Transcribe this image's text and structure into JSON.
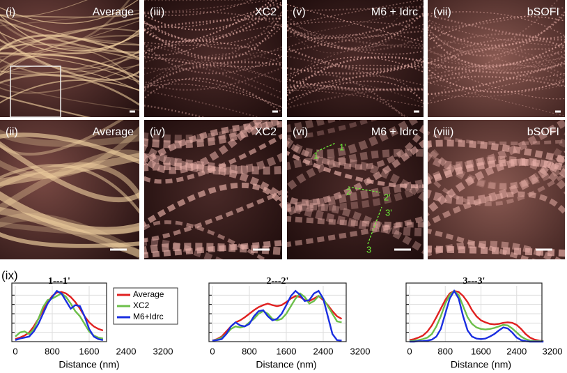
{
  "panels": [
    {
      "label": "(i)",
      "name": "Average"
    },
    {
      "label": "(iii)",
      "name": "XC2"
    },
    {
      "label": "(v)",
      "name": "M6 + Idrc"
    },
    {
      "label": "(vii)",
      "name": "bSOFI"
    },
    {
      "label": "(ii)",
      "name": "Average"
    },
    {
      "label": "(iv)",
      "name": "XC2"
    },
    {
      "label": "(vi)",
      "name": "M6 + Idrc",
      "markers": [
        "1",
        "1'",
        "2",
        "2'",
        "3",
        "3'"
      ]
    },
    {
      "label": "(viii)",
      "name": "bSOFI"
    }
  ],
  "figure_label": "(ix)",
  "chart_data": [
    {
      "type": "line",
      "title": "1---1'",
      "x_label": "Distance (nm)",
      "xlim": [
        0,
        3200
      ],
      "xticks": [
        0,
        800,
        1600,
        2400,
        3200
      ],
      "ylim": [
        0,
        1.1
      ],
      "grid": true,
      "legend": "top-right",
      "x": [
        0,
        100,
        200,
        300,
        400,
        500,
        600,
        700,
        800,
        900,
        1000,
        1100,
        1200,
        1300,
        1400,
        1500,
        1600,
        1700,
        1800,
        1900
      ],
      "series": [
        {
          "name": "Average",
          "color": "#e02020",
          "values": [
            0.05,
            0.08,
            0.12,
            0.18,
            0.3,
            0.45,
            0.62,
            0.78,
            0.9,
            0.97,
            0.98,
            0.95,
            0.88,
            0.78,
            0.65,
            0.5,
            0.38,
            0.3,
            0.25,
            0.22
          ]
        },
        {
          "name": "XC2",
          "color": "#6cbf4a",
          "values": [
            0.1,
            0.18,
            0.2,
            0.15,
            0.25,
            0.45,
            0.68,
            0.82,
            0.85,
            0.9,
            0.95,
            0.88,
            0.75,
            0.6,
            0.5,
            0.35,
            0.2,
            0.12,
            0.08,
            0.06
          ]
        },
        {
          "name": "M6+Idrc",
          "color": "#1a2ee0",
          "values": [
            0.03,
            0.06,
            0.08,
            0.1,
            0.2,
            0.35,
            0.55,
            0.75,
            0.88,
            1.0,
            0.95,
            0.8,
            0.65,
            0.72,
            0.7,
            0.5,
            0.25,
            0.1,
            0.05,
            0.03
          ]
        }
      ]
    },
    {
      "type": "line",
      "title": "2---2'",
      "x_label": "Distance (nm)",
      "xlim": [
        0,
        3200
      ],
      "xticks": [
        0,
        800,
        1600,
        2400,
        3200
      ],
      "ylim": [
        0,
        1.1
      ],
      "grid": true,
      "x": [
        0,
        100,
        200,
        300,
        400,
        500,
        600,
        700,
        800,
        900,
        1000,
        1100,
        1200,
        1300,
        1400,
        1500,
        1600,
        1700,
        1800,
        1900,
        2000,
        2100,
        2200,
        2300,
        2400,
        2500,
        2600,
        2700,
        2800
      ],
      "series": [
        {
          "color": "#e02020",
          "values": [
            0.02,
            0.05,
            0.1,
            0.2,
            0.3,
            0.38,
            0.42,
            0.48,
            0.55,
            0.62,
            0.68,
            0.72,
            0.75,
            0.72,
            0.7,
            0.72,
            0.78,
            0.85,
            0.9,
            0.88,
            0.82,
            0.8,
            0.85,
            0.9,
            0.82,
            0.72,
            0.6,
            0.5,
            0.45
          ]
        },
        {
          "color": "#6cbf4a",
          "values": [
            0.02,
            0.04,
            0.08,
            0.15,
            0.25,
            0.3,
            0.28,
            0.3,
            0.38,
            0.45,
            0.55,
            0.6,
            0.55,
            0.45,
            0.42,
            0.45,
            0.55,
            0.7,
            0.85,
            0.95,
            0.88,
            0.75,
            0.8,
            0.9,
            0.85,
            0.7,
            0.55,
            0.4,
            0.38
          ]
        },
        {
          "color": "#1a2ee0",
          "values": [
            0.02,
            0.03,
            0.05,
            0.15,
            0.3,
            0.38,
            0.32,
            0.3,
            0.35,
            0.5,
            0.6,
            0.62,
            0.5,
            0.42,
            0.45,
            0.55,
            0.72,
            0.9,
            1.0,
            0.92,
            0.8,
            0.82,
            0.95,
            1.0,
            0.85,
            0.5,
            0.15,
            0.03,
            0.02
          ]
        }
      ]
    },
    {
      "type": "line",
      "title": "3---3'",
      "x_label": "Distance (nm)",
      "xlim": [
        0,
        3200
      ],
      "xticks": [
        0,
        800,
        1600,
        2400,
        3200
      ],
      "ylim": [
        0,
        1.1
      ],
      "grid": true,
      "x": [
        0,
        100,
        200,
        300,
        400,
        500,
        600,
        700,
        800,
        900,
        1000,
        1100,
        1200,
        1300,
        1400,
        1500,
        1600,
        1700,
        1800,
        1900,
        2000,
        2100,
        2200,
        2300,
        2400,
        2500,
        2600,
        2700,
        2800,
        2900,
        3000
      ],
      "series": [
        {
          "color": "#e02020",
          "values": [
            0.03,
            0.05,
            0.08,
            0.12,
            0.2,
            0.32,
            0.48,
            0.65,
            0.82,
            0.95,
            1.0,
            0.98,
            0.9,
            0.78,
            0.62,
            0.5,
            0.42,
            0.38,
            0.35,
            0.34,
            0.35,
            0.37,
            0.38,
            0.37,
            0.33,
            0.25,
            0.15,
            0.08,
            0.04,
            0.02,
            0.01
          ]
        },
        {
          "color": "#6cbf4a",
          "values": [
            0.01,
            0.02,
            0.03,
            0.05,
            0.08,
            0.15,
            0.3,
            0.5,
            0.75,
            0.92,
            1.0,
            0.92,
            0.7,
            0.48,
            0.35,
            0.28,
            0.25,
            0.24,
            0.25,
            0.27,
            0.3,
            0.33,
            0.32,
            0.26,
            0.18,
            0.1,
            0.05,
            0.02,
            0.01,
            0.01,
            0.01
          ]
        },
        {
          "color": "#1a2ee0",
          "values": [
            0,
            0,
            0.01,
            0.01,
            0.02,
            0.04,
            0.1,
            0.25,
            0.55,
            0.85,
            1.0,
            0.85,
            0.5,
            0.22,
            0.1,
            0.06,
            0.05,
            0.06,
            0.1,
            0.15,
            0.22,
            0.28,
            0.26,
            0.18,
            0.08,
            0.03,
            0.01,
            0,
            0,
            0,
            0
          ]
        }
      ]
    }
  ]
}
